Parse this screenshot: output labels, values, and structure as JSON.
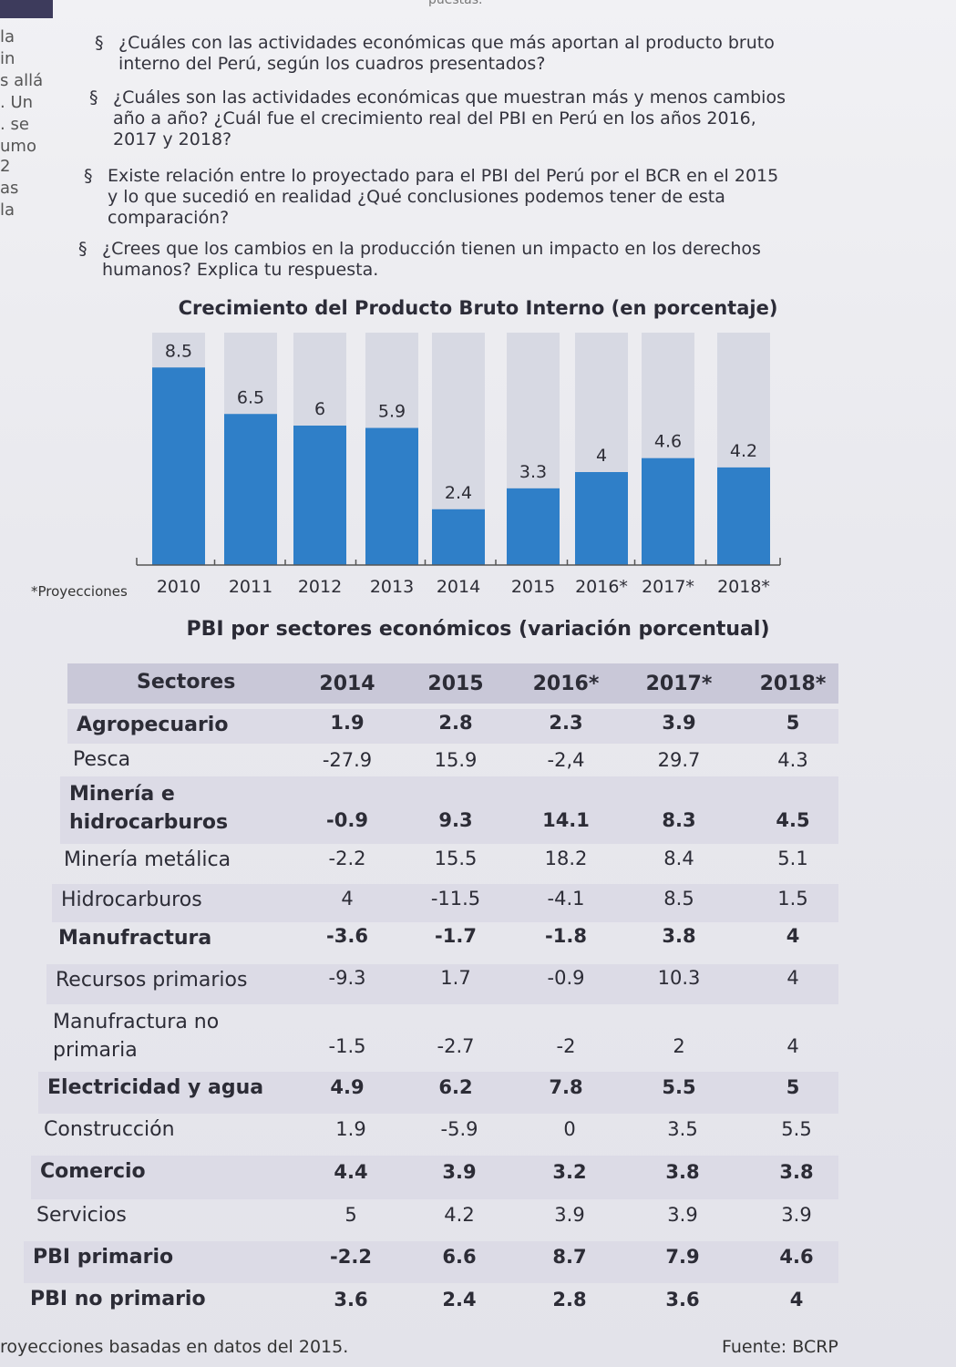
{
  "top_partial": "puestas.",
  "margin_words": [
    "la",
    "in",
    "s allá",
    ". Un",
    ". se",
    "umo",
    "2",
    "as",
    "la"
  ],
  "questions": [
    {
      "bullet": "§",
      "lines": [
        "¿Cuáles con las actividades económicas que más aportan al producto bruto",
        "interno del Perú, según los cuadros presentados?"
      ]
    },
    {
      "bullet": "§",
      "lines": [
        "¿Cuáles son las actividades económicas que muestran más y menos cambios",
        "año a año? ¿Cuál fue el crecimiento real del PBI en Perú en los años 2016,",
        "2017 y 2018?"
      ]
    },
    {
      "bullet": "§",
      "lines": [
        "Existe relación entre lo proyectado para el PBI del Perú por el BCR en el 2015",
        "y lo que sucedió en realidad ¿Qué conclusiones podemos tener de esta",
        "comparación?"
      ]
    },
    {
      "bullet": "§",
      "lines": [
        "¿Crees que los cambios en la producción tienen un impacto en los derechos",
        "humanos? Explica tu respuesta."
      ]
    }
  ],
  "chart_data": {
    "type": "bar",
    "title": "Crecimiento del Producto Bruto Interno (en porcentaje)",
    "categories": [
      "2010",
      "2011",
      "2012",
      "2013",
      "2014",
      "2015",
      "2016*",
      "2017*",
      "2018*"
    ],
    "values": [
      8.5,
      6.5,
      6,
      5.9,
      2.4,
      3.3,
      4,
      4.6,
      4.2
    ],
    "value_labels": [
      "8.5",
      "6.5",
      "6",
      "5.9",
      "2.4",
      "3.3",
      "4",
      "4.6",
      "4.2"
    ],
    "ylim": [
      0,
      10
    ],
    "xlabel": "",
    "ylabel": "",
    "note": "*Proyecciones",
    "bar_color": "#2f7fc8",
    "background_bar_color": "#d7d9e3"
  },
  "table": {
    "title": "PBI por sectores económicos (variación porcentual)",
    "columns": [
      "Sectores",
      "2014",
      "2015",
      "2016*",
      "2017*",
      "2018*"
    ],
    "rows": [
      {
        "sector": "Agropecuario",
        "bold": true,
        "values": [
          "1.9",
          "2.8",
          "2.3",
          "3.9",
          "5"
        ]
      },
      {
        "sector": "Pesca",
        "bold": false,
        "values": [
          "-27.9",
          "15.9",
          "-2,4",
          "29.7",
          "4.3"
        ]
      },
      {
        "sector": "Minería e hidrocarburos",
        "sector_lines": [
          "Minería e",
          "hidrocarburos"
        ],
        "bold": true,
        "values": [
          "-0.9",
          "9.3",
          "14.1",
          "8.3",
          "4.5"
        ]
      },
      {
        "sector": "Minería metálica",
        "bold": false,
        "values": [
          "-2.2",
          "15.5",
          "18.2",
          "8.4",
          "5.1"
        ]
      },
      {
        "sector": "Hidrocarburos",
        "bold": false,
        "values": [
          "4",
          "-11.5",
          "-4.1",
          "8.5",
          "1.5"
        ]
      },
      {
        "sector": "Manufractura",
        "bold": true,
        "values": [
          "-3.6",
          "-1.7",
          "-1.8",
          "3.8",
          "4"
        ]
      },
      {
        "sector": "Recursos primarios",
        "bold": false,
        "values": [
          "-9.3",
          "1.7",
          "-0.9",
          "10.3",
          "4"
        ]
      },
      {
        "sector": "Manufractura no primaria",
        "sector_lines": [
          "Manufractura no",
          "primaria"
        ],
        "bold": false,
        "values": [
          "-1.5",
          "-2.7",
          "-2",
          "2",
          "4"
        ]
      },
      {
        "sector": "Electricidad y agua",
        "bold": true,
        "values": [
          "4.9",
          "6.2",
          "7.8",
          "5.5",
          "5"
        ]
      },
      {
        "sector": "Construcción",
        "bold": false,
        "values": [
          "1.9",
          "-5.9",
          "0",
          "3.5",
          "5.5"
        ]
      },
      {
        "sector": "Comercio",
        "bold": true,
        "values": [
          "4.4",
          "3.9",
          "3.2",
          "3.8",
          "3.8"
        ]
      },
      {
        "sector": "Servicios",
        "bold": false,
        "values": [
          "5",
          "4.2",
          "3.9",
          "3.9",
          "3.9"
        ]
      },
      {
        "sector": "PBI primario",
        "bold": true,
        "values": [
          "-2.2",
          "6.6",
          "8.7",
          "7.9",
          "4.6"
        ]
      },
      {
        "sector": "PBI no primario",
        "bold": true,
        "values": [
          "3.6",
          "2.4",
          "2.8",
          "3.6",
          "4"
        ]
      }
    ]
  },
  "footer": {
    "left": "royecciones basadas en datos del 2015.",
    "right": "Fuente: BCRP"
  }
}
